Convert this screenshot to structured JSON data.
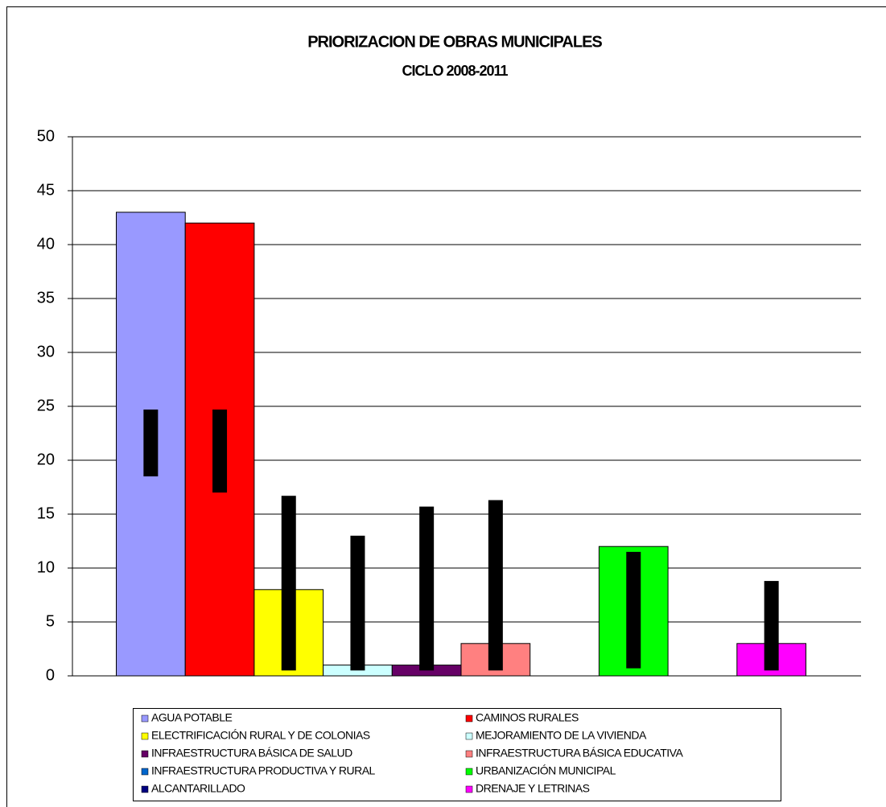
{
  "chart_data": {
    "type": "bar",
    "title": "PRIORIZACION DE OBRAS MUNICIPALES",
    "subtitle": "CICLO 2008-2011",
    "categories": [
      null
    ],
    "ylim": [
      0,
      50
    ],
    "yticks": [
      0,
      5,
      10,
      15,
      20,
      25,
      30,
      35,
      40,
      45,
      50
    ],
    "grid": true,
    "legend": "bottom",
    "series": [
      {
        "name": "AGUA POTABLE",
        "color": "#9999ff",
        "values": [
          43
        ],
        "range": [
          18.5,
          24.7
        ]
      },
      {
        "name": "CAMINOS RURALES",
        "color": "#ff0000",
        "values": [
          42
        ],
        "range": [
          17,
          24.7
        ]
      },
      {
        "name": "ELECTRIFICACIÓN RURAL Y DE COLONIAS",
        "color": "#ffff00",
        "values": [
          8
        ],
        "range": [
          0.5,
          16.7
        ]
      },
      {
        "name": "MEJORAMIENTO DE LA VIVIENDA",
        "color": "#ccffff",
        "values": [
          1
        ],
        "range": [
          0.5,
          13
        ]
      },
      {
        "name": "INFRAESTRUCTURA BÁSICA DE SALUD",
        "color": "#660066",
        "values": [
          1
        ],
        "range": [
          0.5,
          15.7
        ]
      },
      {
        "name": "INFRAESTRUCTURA BÁSICA EDUCATIVA",
        "color": "#ff8080",
        "values": [
          3
        ],
        "range": [
          0.5,
          16.3
        ]
      },
      {
        "name": "INFRAESTRUCTURA PRODUCTIVA Y RURAL",
        "color": "#0066cc",
        "values": [
          0
        ],
        "range": null
      },
      {
        "name": "URBANIZACIÓN MUNICIPAL",
        "color": "#00ff00",
        "values": [
          12
        ],
        "range": [
          0.7,
          11.5
        ]
      },
      {
        "name": "ALCANTARILLADO",
        "color": "#000080",
        "values": [
          0
        ],
        "range": null
      },
      {
        "name": "DRENAJE Y LETRINAS",
        "color": "#ff00ff",
        "values": [
          3
        ],
        "range": [
          0.5,
          8.8
        ]
      }
    ]
  }
}
